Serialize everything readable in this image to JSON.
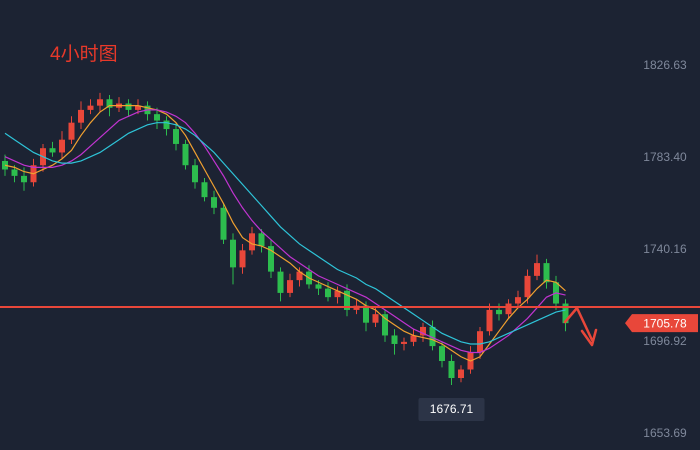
{
  "chart_data": {
    "type": "candlestick",
    "title": "4小时图",
    "open": [
      1782,
      1778,
      1775,
      1772,
      1780,
      1788,
      1786,
      1792,
      1800,
      1806,
      1808,
      1811,
      1807,
      1809,
      1806,
      1808,
      1804,
      1801,
      1797,
      1790,
      1780,
      1772,
      1765,
      1760,
      1745,
      1732,
      1740,
      1748,
      1742,
      1730,
      1720,
      1726,
      1730,
      1724,
      1722,
      1718,
      1721,
      1712,
      1714,
      1706,
      1710,
      1700,
      1696,
      1697,
      1700,
      1704,
      1695,
      1688,
      1680,
      1684,
      1692,
      1702,
      1712,
      1710,
      1715,
      1718,
      1728,
      1734,
      1725,
      1715
    ],
    "high": [
      1785,
      1780,
      1779,
      1783,
      1790,
      1791,
      1796,
      1803,
      1810,
      1811,
      1814,
      1813,
      1812,
      1811,
      1811,
      1810,
      1807,
      1803,
      1800,
      1792,
      1783,
      1774,
      1768,
      1762,
      1748,
      1743,
      1751,
      1750,
      1745,
      1732,
      1729,
      1732,
      1733,
      1726,
      1725,
      1723,
      1724,
      1717,
      1716,
      1713,
      1712,
      1703,
      1699,
      1703,
      1706,
      1707,
      1697,
      1691,
      1686,
      1695,
      1704,
      1715,
      1715,
      1717,
      1721,
      1731,
      1738,
      1736,
      1728,
      1717
    ],
    "low": [
      1775,
      1772,
      1768,
      1770,
      1777,
      1784,
      1783,
      1790,
      1797,
      1804,
      1805,
      1803,
      1805,
      1803,
      1804,
      1801,
      1797,
      1794,
      1787,
      1778,
      1769,
      1763,
      1757,
      1743,
      1724,
      1729,
      1738,
      1739,
      1727,
      1716,
      1718,
      1723,
      1722,
      1719,
      1716,
      1715,
      1709,
      1710,
      1702,
      1704,
      1697,
      1691,
      1693,
      1695,
      1697,
      1693,
      1685,
      1676.71,
      1678,
      1682,
      1689,
      1700,
      1707,
      1708,
      1713,
      1715,
      1726,
      1722,
      1712,
      1702
    ],
    "close": [
      1778,
      1775,
      1772,
      1780,
      1788,
      1786,
      1792,
      1800,
      1806,
      1808,
      1811,
      1807,
      1809,
      1806,
      1808,
      1804,
      1801,
      1797,
      1790,
      1780,
      1772,
      1765,
      1760,
      1745,
      1732,
      1740,
      1748,
      1742,
      1730,
      1720,
      1726,
      1730,
      1724,
      1722,
      1718,
      1721,
      1712,
      1714,
      1706,
      1710,
      1700,
      1696,
      1697,
      1700,
      1704,
      1695,
      1688,
      1680,
      1684,
      1692,
      1702,
      1712,
      1710,
      1715,
      1718,
      1728,
      1734,
      1725,
      1715,
      1705.78
    ],
    "up_color": "#e8473a",
    "down_color": "#2dbd4e",
    "series": [
      {
        "color": "#f0a030",
        "values": [
          1780,
          1779,
          1777,
          1776,
          1778,
          1780,
          1783,
          1787,
          1794,
          1800,
          1805,
          1808,
          1808,
          1808,
          1808,
          1807,
          1806,
          1804,
          1800,
          1794,
          1786,
          1778,
          1770,
          1762,
          1753,
          1746,
          1743,
          1742,
          1740,
          1737,
          1734,
          1730,
          1727,
          1725,
          1723,
          1721,
          1719,
          1717,
          1714,
          1712,
          1708,
          1705,
          1702,
          1700,
          1699,
          1698,
          1696,
          1693,
          1690,
          1688,
          1690,
          1696,
          1702,
          1708,
          1713,
          1717,
          1722,
          1726,
          1725,
          1721
        ]
      },
      {
        "color": "#c034d0",
        "values": [
          1784,
          1782,
          1780,
          1779,
          1779,
          1779,
          1780,
          1782,
          1785,
          1789,
          1793,
          1797,
          1801,
          1803,
          1805,
          1806,
          1806,
          1805,
          1803,
          1800,
          1795,
          1789,
          1782,
          1775,
          1767,
          1760,
          1754,
          1749,
          1745,
          1741,
          1737,
          1734,
          1731,
          1728,
          1726,
          1724,
          1722,
          1720,
          1718,
          1715,
          1712,
          1709,
          1706,
          1703,
          1701,
          1699,
          1697,
          1695,
          1693,
          1692,
          1692,
          1694,
          1697,
          1700,
          1704,
          1708,
          1713,
          1718,
          1720,
          1719
        ]
      },
      {
        "color": "#2ec4d8",
        "values": [
          1795,
          1792,
          1789,
          1786,
          1784,
          1782,
          1781,
          1781,
          1782,
          1784,
          1786,
          1789,
          1792,
          1795,
          1797,
          1799,
          1800,
          1800,
          1799,
          1797,
          1794,
          1790,
          1786,
          1781,
          1776,
          1771,
          1766,
          1761,
          1756,
          1751,
          1747,
          1743,
          1740,
          1737,
          1734,
          1731,
          1729,
          1727,
          1724,
          1722,
          1719,
          1716,
          1713,
          1710,
          1707,
          1704,
          1701,
          1699,
          1697,
          1696,
          1696,
          1697,
          1699,
          1701,
          1703,
          1705,
          1707,
          1709,
          1711,
          1712
        ]
      }
    ],
    "resistance_line": 1713.4,
    "line_color": "#e8473a",
    "ylim": [
      1646.17,
      1857.65
    ],
    "yticks": [
      1653.69,
      1696.92,
      1740.16,
      {
        "value": 1783.4,
        "label": "1783.40"
      },
      1826.63
    ],
    "grid": false
  }
}
